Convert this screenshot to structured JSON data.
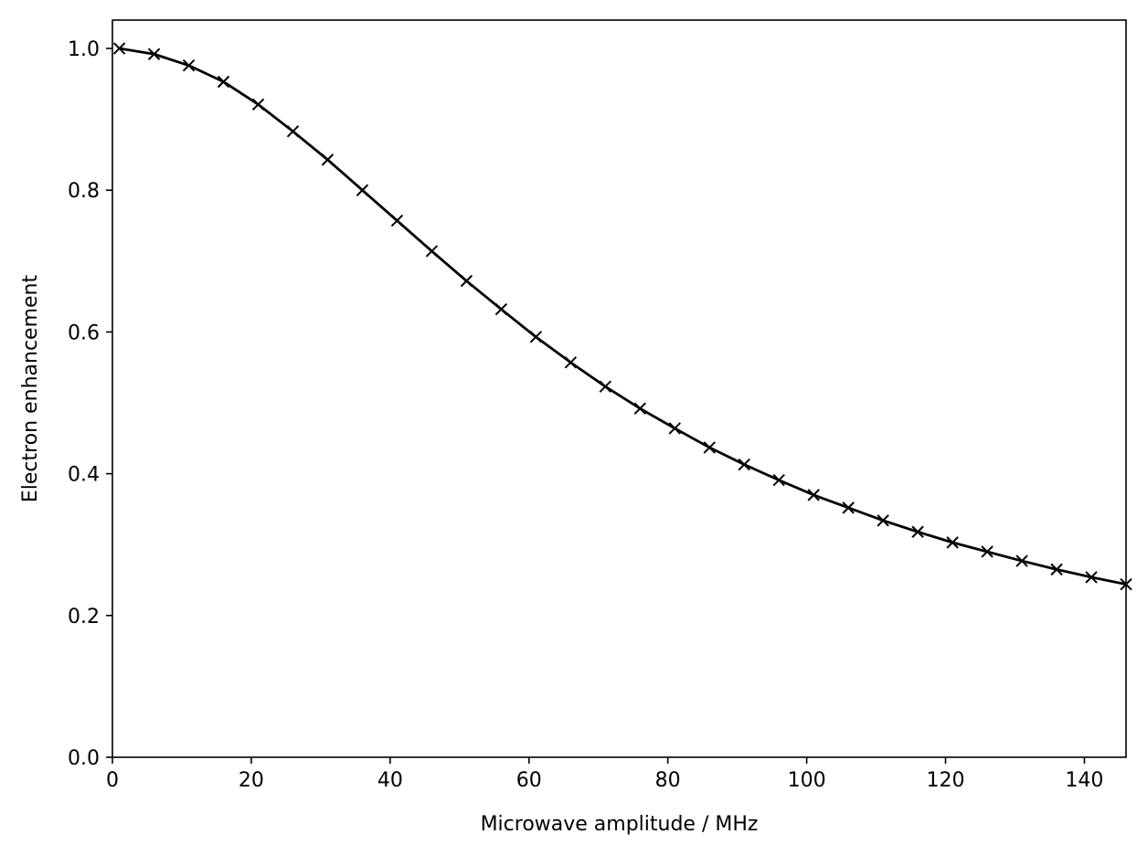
{
  "chart_data": {
    "type": "line",
    "title": "",
    "xlabel": "Microwave amplitude / MHz",
    "ylabel": "Electron enhancement",
    "xlim": [
      0,
      146
    ],
    "ylim": [
      0,
      1.04
    ],
    "xticks": [
      0,
      20,
      40,
      60,
      80,
      100,
      120,
      140
    ],
    "yticks": [
      0.0,
      0.2,
      0.4,
      0.6,
      0.8,
      1.0
    ],
    "xtick_labels": [
      "0",
      "20",
      "40",
      "60",
      "80",
      "100",
      "120",
      "140"
    ],
    "ytick_labels": [
      "0.0",
      "0.2",
      "0.4",
      "0.6",
      "0.8",
      "1.0"
    ],
    "grid": false,
    "legend": "none",
    "series": [
      {
        "color": "#000000",
        "marker": "x",
        "x": [
          1,
          6,
          11,
          16,
          21,
          26,
          31,
          36,
          41,
          46,
          51,
          56,
          61,
          66,
          71,
          76,
          81,
          86,
          91,
          96,
          101,
          106,
          111,
          116,
          121,
          126,
          131,
          136,
          141,
          146
        ],
        "y": [
          1.0,
          0.992,
          0.976,
          0.953,
          0.921,
          0.883,
          0.843,
          0.8,
          0.757,
          0.714,
          0.672,
          0.632,
          0.593,
          0.557,
          0.523,
          0.492,
          0.464,
          0.437,
          0.413,
          0.391,
          0.37,
          0.352,
          0.334,
          0.318,
          0.303,
          0.29,
          0.277,
          0.265,
          0.254,
          0.244
        ]
      }
    ]
  }
}
